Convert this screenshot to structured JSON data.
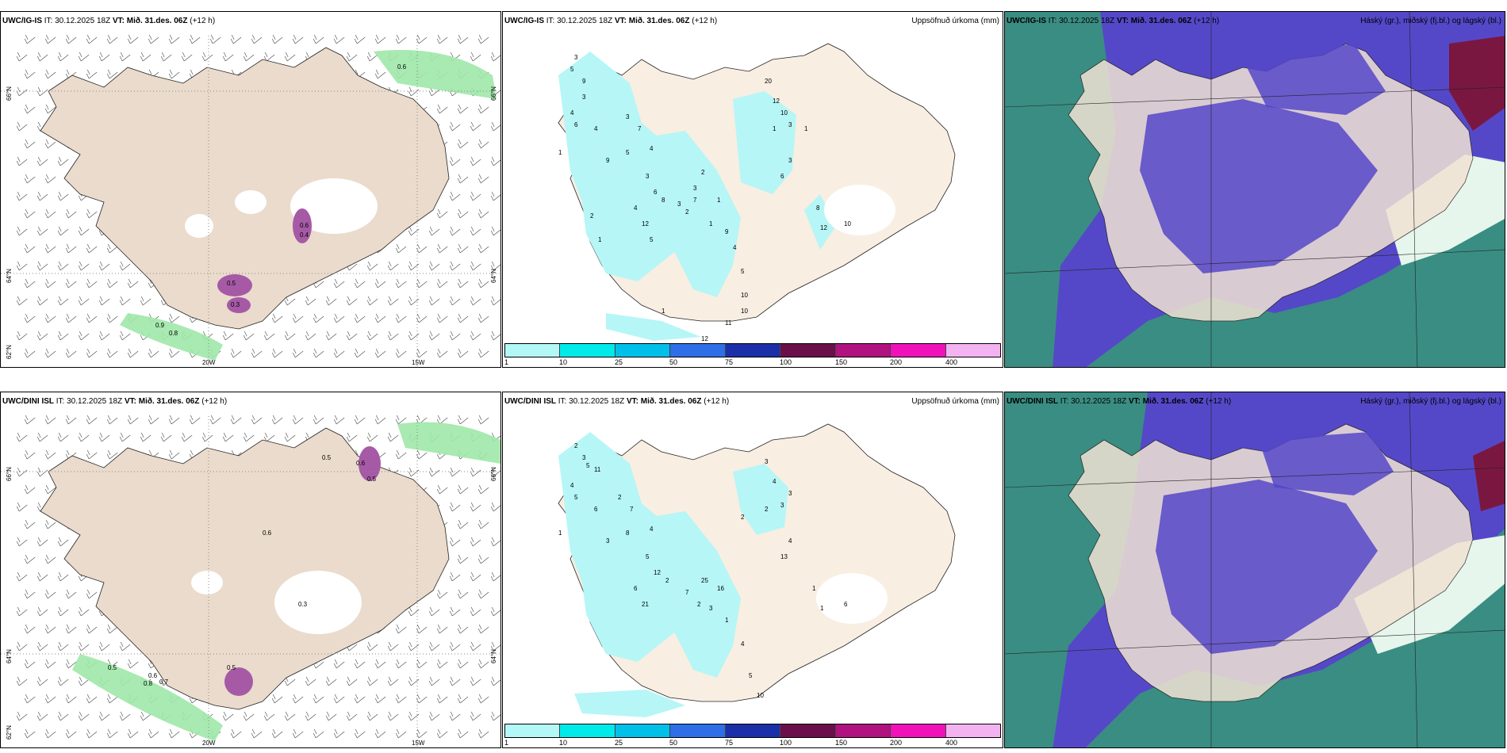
{
  "panels": {
    "top_wind": {
      "model": "UWC/IG-IS",
      "it_label": "IT:",
      "it_value": "30.12.2025 18Z",
      "vt_label": "VT:",
      "vt_value": "Mið. 31.des. 06Z",
      "lead": "(+12 h)",
      "lat_labels": [
        "66°N",
        "64°N",
        "62°N"
      ],
      "lon_labels": [
        "20W",
        "15W"
      ],
      "values": [
        "0.6",
        "0.6",
        "0.4",
        "0.5",
        "0.3",
        "0.9",
        "0.8"
      ]
    },
    "top_precip": {
      "model": "UWC/IG-IS",
      "it_label": "IT:",
      "it_value": "30.12.2025 18Z",
      "vt_label": "VT:",
      "vt_value": "Mið. 31.des. 06Z",
      "lead": "(+12 h)",
      "title_right": "Uppsöfnuð úrkoma (mm)",
      "values": [
        "3",
        "5",
        "9",
        "3",
        "4",
        "6",
        "4",
        "3",
        "7",
        "9",
        "5",
        "4",
        "3",
        "6",
        "8",
        "4",
        "12",
        "5",
        "3",
        "2",
        "7",
        "3",
        "2",
        "1",
        "1",
        "9",
        "4",
        "5",
        "10",
        "10",
        "11",
        "12",
        "20",
        "12",
        "10",
        "3",
        "1",
        "1",
        "3",
        "6",
        "8",
        "12",
        "10",
        "1",
        "2",
        "1",
        "1"
      ]
    },
    "top_cloud": {
      "model": "UWC/IG-IS",
      "it_label": "IT:",
      "it_value": "30.12.2025 18Z",
      "vt_label": "VT:",
      "vt_value": "Mið. 31.des. 06Z",
      "lead": "(+12 h)",
      "title_right": "Háský (gr.), miðský (fj.bl.) og lágský (bl.)"
    },
    "bot_wind": {
      "model": "UWC/DINI ISL",
      "it_label": "IT:",
      "it_value": "30.12.2025 18Z",
      "vt_label": "VT:",
      "vt_value": "Mið. 31.des. 06Z",
      "lead": "(+12 h)",
      "lat_labels": [
        "66°N",
        "64°N",
        "62°N"
      ],
      "lon_labels": [
        "20W",
        "15W"
      ],
      "values": [
        "0.5",
        "0.6",
        "0.5",
        "0.6",
        "0.3",
        "0.5",
        "0.6",
        "0.8",
        "0.7",
        "0.5"
      ]
    },
    "bot_precip": {
      "model": "UWC/DINI ISL",
      "it_label": "IT:",
      "it_value": "30.12.2025 18Z",
      "vt_label": "VT:",
      "vt_value": "Mið. 31.des. 06Z",
      "lead": "(+12 h)",
      "title_right": "Uppsöfnuð úrkoma (mm)",
      "values": [
        "2",
        "3",
        "5",
        "11",
        "4",
        "5",
        "6",
        "2",
        "7",
        "3",
        "8",
        "4",
        "5",
        "12",
        "2",
        "6",
        "21",
        "25",
        "16",
        "7",
        "2",
        "3",
        "1",
        "4",
        "5",
        "10",
        "3",
        "4",
        "3",
        "3",
        "2",
        "2",
        "4",
        "13",
        "1",
        "1",
        "6",
        "1"
      ]
    },
    "bot_cloud": {
      "model": "UWC/DINI ISL",
      "it_label": "IT:",
      "it_value": "30.12.2025 18Z",
      "vt_label": "VT:",
      "vt_value": "Mið. 31.des. 06Z",
      "lead": "(+12 h)",
      "title_right": "Háský (gr.), miðský (fj.bl.) og lágský (bl.)"
    }
  },
  "colorbar": {
    "ticks": [
      "1",
      "10",
      "25",
      "50",
      "75",
      "100",
      "150",
      "200",
      "400"
    ],
    "colors": [
      "#b3f7f7",
      "#00eaea",
      "#00c0ea",
      "#2e6ee6",
      "#1a2fa8",
      "#6a0f4a",
      "#b0127f",
      "#f012b8",
      "#f3b3f0"
    ]
  },
  "map_colors": {
    "land": "#f8eee2",
    "land_wind": "#eadbcc",
    "precip_light": "#b6f6f6",
    "cloud_low": "#2f8a7a",
    "cloud_mid": "#5548c8",
    "cloud_high": "#2b2b9e",
    "green": "#8fe6a0",
    "purple": "#b05cb0"
  }
}
